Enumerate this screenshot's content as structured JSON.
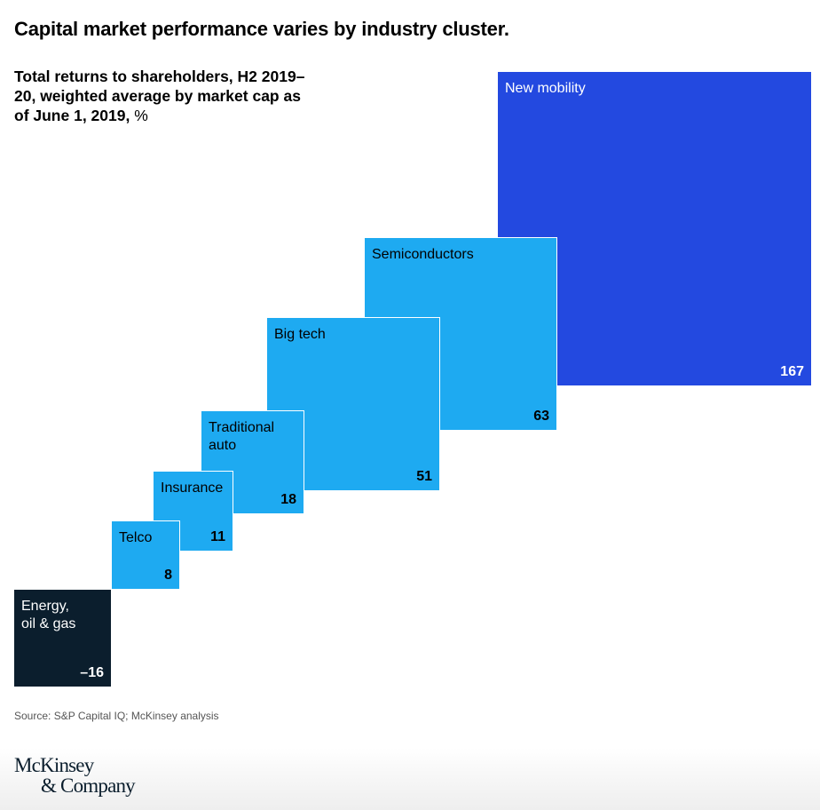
{
  "chart_data": {
    "type": "square-area",
    "title": "Capital market performance varies by industry cluster.",
    "subtitle": "Total returns to shareholders, H2 2019–20, weighted average by market cap as of June 1, 2019,",
    "unit": "%",
    "categories": [
      "Energy, oil & gas",
      "Telco",
      "Insurance",
      "Traditional auto",
      "Big tech",
      "Semiconductors",
      "New mobility"
    ],
    "values": [
      -16,
      8,
      11,
      18,
      51,
      63,
      167
    ],
    "value_labels": [
      "–16",
      "8",
      "11",
      "18",
      "51",
      "63",
      "167"
    ],
    "colors": {
      "negative": "#0b1e2d",
      "positive": "#1eaaf1",
      "highlight": "#2349e0"
    }
  },
  "source": "Source: S&P Capital IQ; McKinsey analysis",
  "logo": {
    "line1": "McKinsey",
    "line2": "& Company"
  }
}
